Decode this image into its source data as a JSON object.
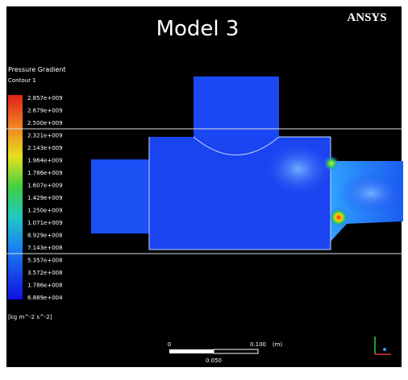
{
  "header": {
    "title": "Model 3",
    "logo": "ANSYS"
  },
  "legend": {
    "title": "Pressure Gradient",
    "subtitle": "Contour 1",
    "labels": [
      "2.857e+009",
      "2.679e+009",
      "2.500e+009",
      "2.321e+009",
      "2.143e+009",
      "1.964e+009",
      "1.786e+009",
      "1.607e+009",
      "1.429e+009",
      "1.250e+009",
      "1.071e+009",
      "8.929e+008",
      "7.143e+008",
      "5.357e+008",
      "3.572e+008",
      "1.786e+008",
      "6.889e+004"
    ],
    "units": "[kg m^-2 s^-2]"
  },
  "scale_bar": {
    "start": "0",
    "end": "0.100",
    "unit": "(m)",
    "mid": "0.050"
  }
}
